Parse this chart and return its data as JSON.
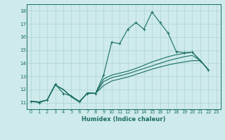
{
  "xlabel": "Humidex (Indice chaleur)",
  "background_color": "#ceeaea",
  "grid_color": "#aed4d4",
  "line_color": "#1a6e64",
  "xlim": [
    -0.5,
    23.5
  ],
  "ylim": [
    10.5,
    18.5
  ],
  "xticks": [
    0,
    1,
    2,
    3,
    4,
    5,
    6,
    7,
    8,
    9,
    10,
    11,
    12,
    13,
    14,
    15,
    16,
    17,
    18,
    19,
    20,
    21,
    22,
    23
  ],
  "yticks": [
    11,
    12,
    13,
    14,
    15,
    16,
    17,
    18
  ],
  "line1_x": [
    0,
    1,
    2,
    3,
    4,
    5,
    6,
    7,
    8,
    9,
    10,
    11,
    12,
    13,
    14,
    15,
    16,
    17,
    18,
    19,
    20,
    21,
    22,
    23
  ],
  "line1_y": [
    11.1,
    11.0,
    11.2,
    12.4,
    11.7,
    11.5,
    11.1,
    11.7,
    11.7,
    13.1,
    15.6,
    15.5,
    16.6,
    17.1,
    16.6,
    17.9,
    17.1,
    16.3,
    14.9,
    14.8,
    14.85,
    14.2,
    13.5,
    null
  ],
  "line2_x": [
    0,
    1,
    2,
    3,
    4,
    5,
    6,
    7,
    8,
    9,
    10,
    11,
    12,
    13,
    14,
    15,
    16,
    17,
    18,
    19,
    20,
    21,
    22,
    23
  ],
  "line2_y": [
    11.1,
    11.05,
    11.2,
    12.35,
    12.0,
    11.45,
    11.05,
    11.75,
    11.7,
    12.8,
    13.1,
    13.25,
    13.4,
    13.6,
    13.85,
    14.1,
    14.3,
    14.5,
    14.65,
    14.75,
    14.85,
    14.2,
    13.5,
    null
  ],
  "line3_x": [
    0,
    1,
    2,
    3,
    4,
    5,
    6,
    7,
    8,
    9,
    10,
    11,
    12,
    13,
    14,
    15,
    16,
    17,
    18,
    19,
    20,
    21,
    22,
    23
  ],
  "line3_y": [
    11.1,
    11.05,
    11.2,
    12.35,
    12.0,
    11.45,
    11.05,
    11.75,
    11.7,
    12.6,
    12.9,
    13.05,
    13.2,
    13.4,
    13.6,
    13.8,
    14.0,
    14.2,
    14.35,
    14.5,
    14.6,
    14.2,
    13.5,
    null
  ],
  "line4_x": [
    0,
    1,
    2,
    3,
    4,
    5,
    6,
    7,
    8,
    9,
    10,
    11,
    12,
    13,
    14,
    15,
    16,
    17,
    18,
    19,
    20,
    21,
    22,
    23
  ],
  "line4_y": [
    11.1,
    11.05,
    11.2,
    12.35,
    12.0,
    11.45,
    11.05,
    11.75,
    11.7,
    12.3,
    12.65,
    12.8,
    12.95,
    13.15,
    13.35,
    13.55,
    13.72,
    13.87,
    14.0,
    14.1,
    14.2,
    14.2,
    13.5,
    null
  ]
}
